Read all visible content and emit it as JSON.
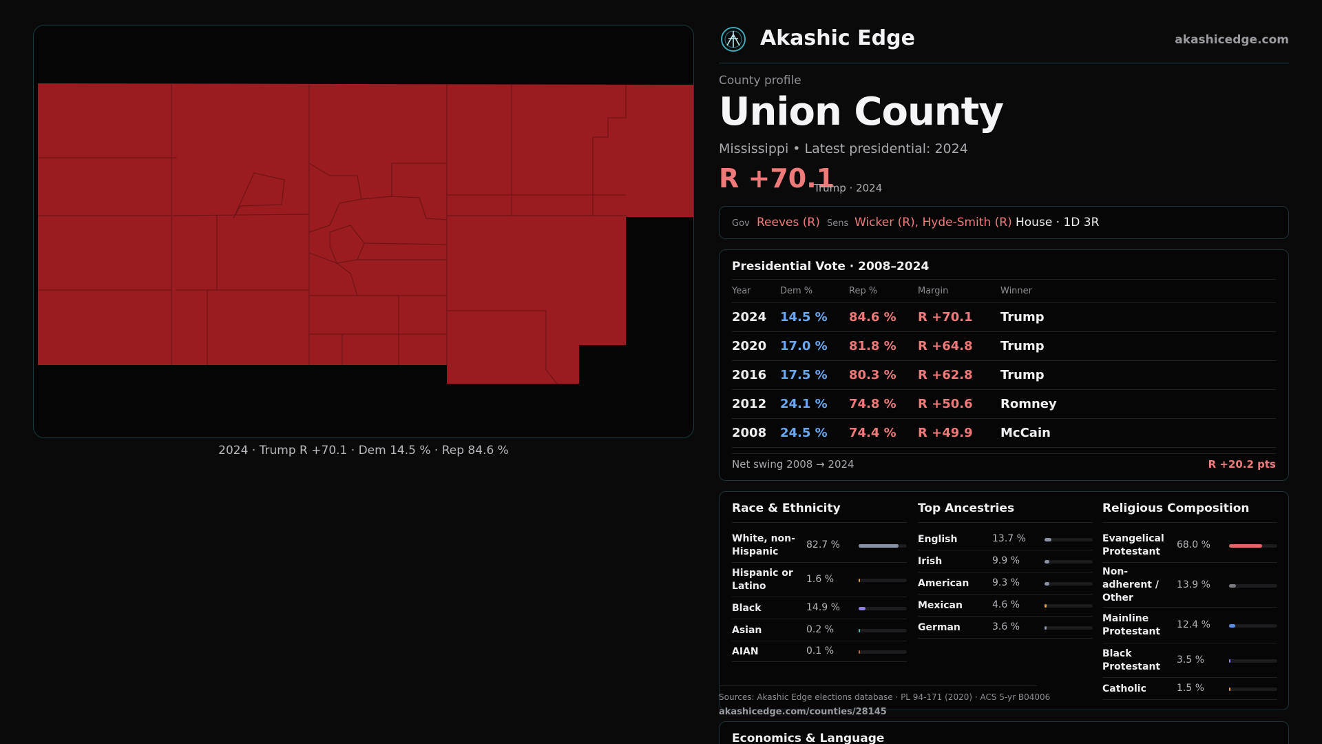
{
  "map": {
    "caption": "2024 · Trump R +70.1 · Dem 14.5 % · Rep 84.6 %",
    "fill_color": "#9b1c20",
    "border_color": "#6e1316"
  },
  "header": {
    "brand": "Akashic Edge",
    "site": "akashicedge.com"
  },
  "profile": {
    "kicker": "County profile",
    "title": "Union County",
    "subtitle": "Mississippi • Latest presidential: 2024",
    "margin": "R +70.1",
    "margin_note": "Trump · 2024"
  },
  "officials": {
    "gov_label": "Gov",
    "gov": "Reeves (R)",
    "sens_label": "Sens",
    "sens": "Wicker (R), Hyde-Smith (R)",
    "house": "House · 1D 3R"
  },
  "presidential": {
    "title": "Presidential Vote · 2008–2024",
    "columns": [
      "Year",
      "Dem %",
      "Rep %",
      "Margin",
      "Winner"
    ],
    "rows": [
      {
        "year": "2024",
        "dem": "14.5 %",
        "rep": "84.6 %",
        "margin": "R +70.1",
        "winner": "Trump"
      },
      {
        "year": "2020",
        "dem": "17.0 %",
        "rep": "81.8 %",
        "margin": "R +64.8",
        "winner": "Trump"
      },
      {
        "year": "2016",
        "dem": "17.5 %",
        "rep": "80.3 %",
        "margin": "R +62.8",
        "winner": "Trump"
      },
      {
        "year": "2012",
        "dem": "24.1 %",
        "rep": "74.8 %",
        "margin": "R +50.6",
        "winner": "Romney"
      },
      {
        "year": "2008",
        "dem": "24.5 %",
        "rep": "74.4 %",
        "margin": "R +49.9",
        "winner": "McCain"
      }
    ],
    "swing_label": "Net swing 2008 → 2024",
    "swing_value": "R +20.2 pts"
  },
  "race": {
    "title": "Race & Ethnicity",
    "items": [
      {
        "label": "White, non-Hispanic",
        "value": "82.7 %",
        "pct": 82.7,
        "color": "#8a93a6"
      },
      {
        "label": "Hispanic or Latino",
        "value": "1.6 %",
        "pct": 1.6,
        "color": "#e0a040"
      },
      {
        "label": "Black",
        "value": "14.9 %",
        "pct": 14.9,
        "color": "#8f7df0"
      },
      {
        "label": "Asian",
        "value": "0.2 %",
        "pct": 0.2,
        "color": "#4cc0b0"
      },
      {
        "label": "AIAN",
        "value": "0.1 %",
        "pct": 0.1,
        "color": "#c07040"
      }
    ]
  },
  "ancestry": {
    "title": "Top Ancestries",
    "items": [
      {
        "label": "English",
        "value": "13.7 %",
        "pct": 13.7,
        "color": "#8a93a6"
      },
      {
        "label": "Irish",
        "value": "9.9 %",
        "pct": 9.9,
        "color": "#8a93a6"
      },
      {
        "label": "American",
        "value": "9.3 %",
        "pct": 9.3,
        "color": "#8a93a6"
      },
      {
        "label": "Mexican",
        "value": "4.6 %",
        "pct": 4.6,
        "color": "#e0a040"
      },
      {
        "label": "German",
        "value": "3.6 %",
        "pct": 3.6,
        "color": "#8a93a6"
      }
    ]
  },
  "religion": {
    "title": "Religious Composition",
    "items": [
      {
        "label": "Evangelical Protestant",
        "value": "68.0 %",
        "pct": 68.0,
        "color": "#e06868"
      },
      {
        "label": "Non-adherent / Other",
        "value": "13.9 %",
        "pct": 13.9,
        "color": "#7a7a80"
      },
      {
        "label": "Mainline Protestant",
        "value": "12.4 %",
        "pct": 12.4,
        "color": "#5a8ee8"
      },
      {
        "label": "Black Protestant",
        "value": "3.5 %",
        "pct": 3.5,
        "color": "#8f7df0"
      },
      {
        "label": "Catholic",
        "value": "1.5 %",
        "pct": 1.5,
        "color": "#e0a040"
      }
    ]
  },
  "sources": {
    "text": "Sources: Akashic Edge elections database · PL 94-171 (2020) · ACS 5-yr B04006",
    "url": "akashicedge.com/counties/28145"
  },
  "econ": {
    "title": "Economics & Language"
  }
}
